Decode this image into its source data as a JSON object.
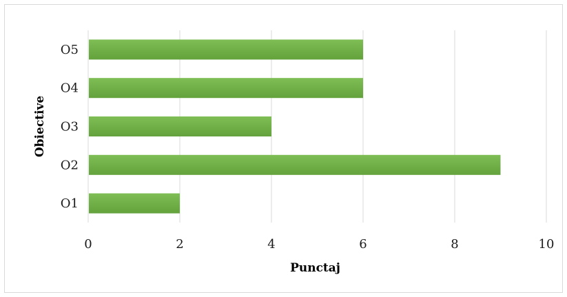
{
  "chart_data": {
    "type": "bar",
    "orientation": "horizontal",
    "categories": [
      "O1",
      "O2",
      "O3",
      "O4",
      "O5"
    ],
    "values": [
      2,
      9,
      4,
      6,
      6
    ],
    "xlabel": "Punctaj",
    "ylabel": "Obiective",
    "xlim": [
      0,
      10
    ],
    "xticks": [
      0,
      2,
      4,
      6,
      8,
      10
    ],
    "grid": "vertical",
    "legend": "none",
    "bar_color": "#70ad47"
  }
}
